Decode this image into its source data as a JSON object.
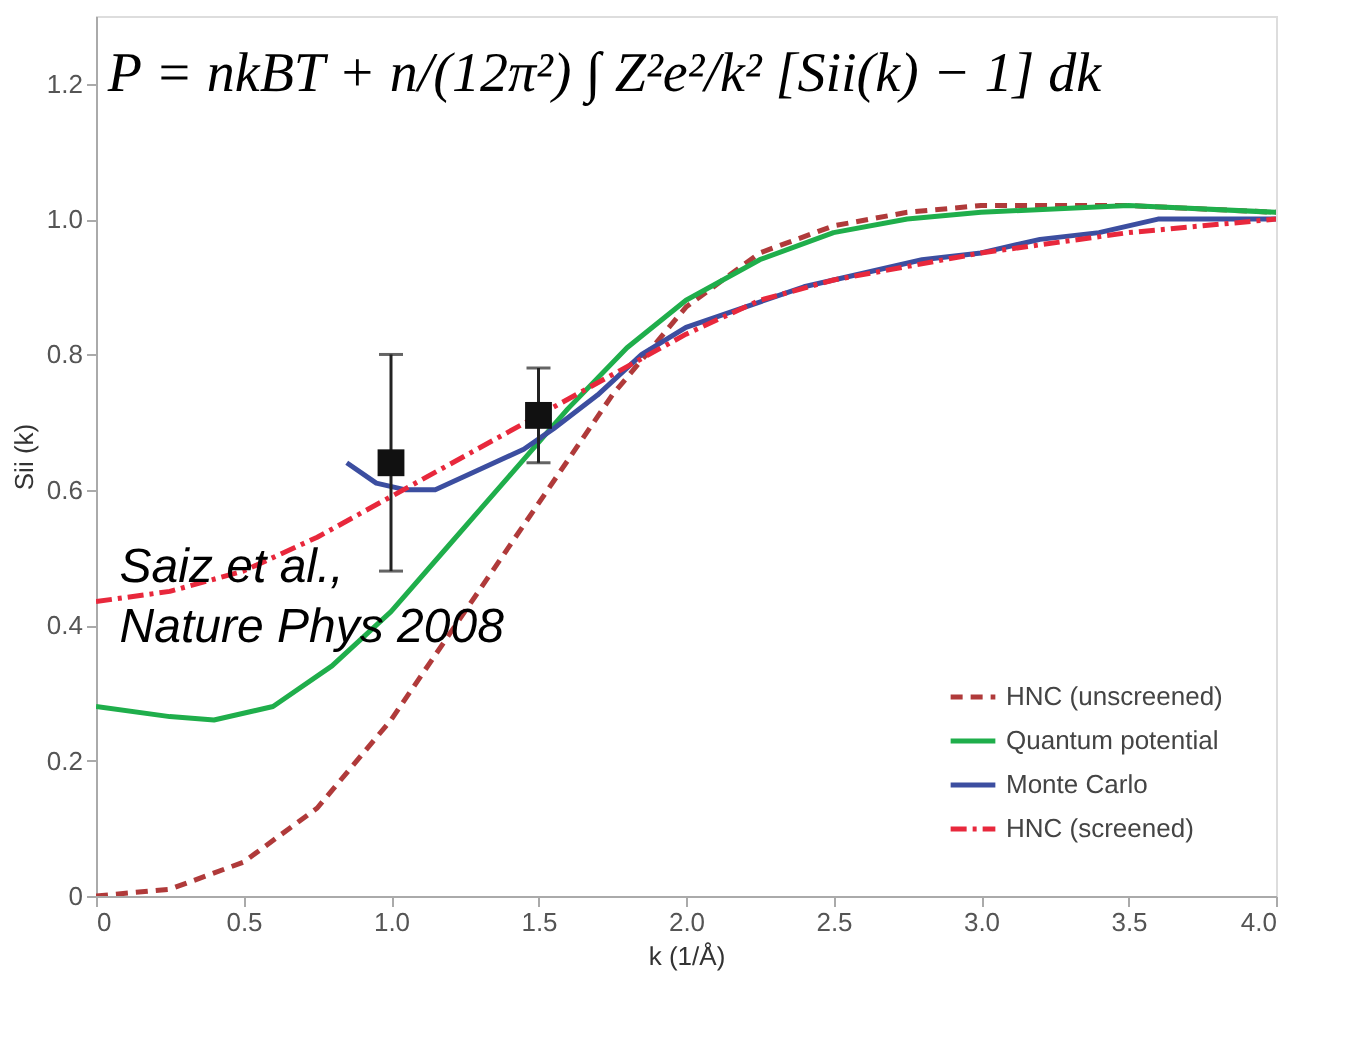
{
  "chart_data": {
    "type": "line",
    "xlabel": "k (1/Å)",
    "ylabel": "Sii (k)",
    "annotations": [
      "P = nkBT + n/(12π²) ∫ Z²e²/k² [Sii(k) − 1] dk",
      "Saiz et al.,\nNature Phys 2008"
    ],
    "xlim": [
      0,
      4.0
    ],
    "ylim": [
      0,
      1.3
    ],
    "xticks": [
      0,
      {
        "value": 0.5,
        "label": "0.5"
      },
      {
        "value": 1,
        "label": "1.0"
      },
      {
        "value": 1.5,
        "label": "1.5"
      },
      {
        "value": 2,
        "label": "2.0"
      },
      {
        "value": 2.5,
        "label": "2.5"
      },
      {
        "value": 3,
        "label": "3.0"
      },
      {
        "value": 3.5,
        "label": "3.5"
      },
      {
        "value": 4,
        "label": "4.0"
      }
    ],
    "yticks": [
      0,
      0.2,
      0.4,
      0.6,
      0.8,
      {
        "value": 1,
        "label": "1.0"
      },
      1.2
    ],
    "grid": false,
    "legend": "bottom right",
    "series": [
      {
        "name": "HNC (unscreened)",
        "color": "#b03a3a",
        "line_style": "dashed",
        "x": [
          0,
          0.25,
          0.5,
          0.75,
          1.0,
          1.25,
          1.5,
          1.75,
          2.0,
          2.25,
          2.5,
          2.75,
          3.0,
          3.5,
          4.0
        ],
        "values": [
          0,
          0.01,
          0.05,
          0.13,
          0.26,
          0.42,
          0.58,
          0.74,
          0.87,
          0.95,
          0.99,
          1.01,
          1.02,
          1.02,
          1.01
        ]
      },
      {
        "name": "Quantum potential",
        "color": "#1fae4b",
        "line_style": "solid",
        "x": [
          0,
          0.25,
          0.4,
          0.6,
          0.8,
          1.0,
          1.2,
          1.4,
          1.6,
          1.8,
          2.0,
          2.25,
          2.5,
          2.75,
          3.0,
          3.5,
          4.0
        ],
        "values": [
          0.28,
          0.265,
          0.26,
          0.28,
          0.34,
          0.42,
          0.52,
          0.62,
          0.72,
          0.81,
          0.88,
          0.94,
          0.98,
          1.0,
          1.01,
          1.02,
          1.01
        ]
      },
      {
        "name": "Monte Carlo",
        "color": "#3c4ea0",
        "line_style": "solid",
        "x": [
          0.85,
          0.95,
          1.05,
          1.15,
          1.3,
          1.45,
          1.55,
          1.7,
          1.85,
          2.0,
          2.2,
          2.4,
          2.6,
          2.8,
          3.0,
          3.2,
          3.4,
          3.6,
          3.8,
          4.0
        ],
        "values": [
          0.64,
          0.61,
          0.6,
          0.6,
          0.63,
          0.66,
          0.69,
          0.74,
          0.8,
          0.84,
          0.87,
          0.9,
          0.92,
          0.94,
          0.95,
          0.97,
          0.98,
          1.0,
          1.0,
          1.0
        ]
      },
      {
        "name": "HNC (screened)",
        "color": "#e8283c",
        "line_style": "dashdot",
        "x": [
          0,
          0.25,
          0.5,
          0.75,
          1.0,
          1.25,
          1.5,
          1.75,
          2.0,
          2.25,
          2.5,
          2.75,
          3.0,
          3.5,
          4.0
        ],
        "values": [
          0.435,
          0.45,
          0.48,
          0.53,
          0.59,
          0.65,
          0.71,
          0.77,
          0.83,
          0.88,
          0.91,
          0.93,
          0.95,
          0.98,
          1.0
        ]
      },
      {
        "type": "scatter",
        "color": "#111111",
        "marker": "square",
        "x": [
          1.0,
          1.5
        ],
        "values": [
          0.64,
          0.71
        ],
        "errors": [
          [
            0.48,
            0.8
          ],
          [
            0.64,
            0.78
          ]
        ]
      }
    ]
  }
}
